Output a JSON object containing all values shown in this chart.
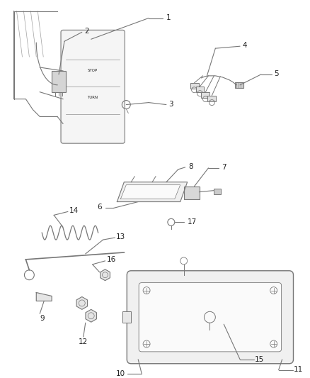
{
  "background_color": "#ffffff",
  "line_color": "#777777",
  "text_color": "#222222",
  "fig_width": 4.38,
  "fig_height": 5.33,
  "dpi": 100
}
